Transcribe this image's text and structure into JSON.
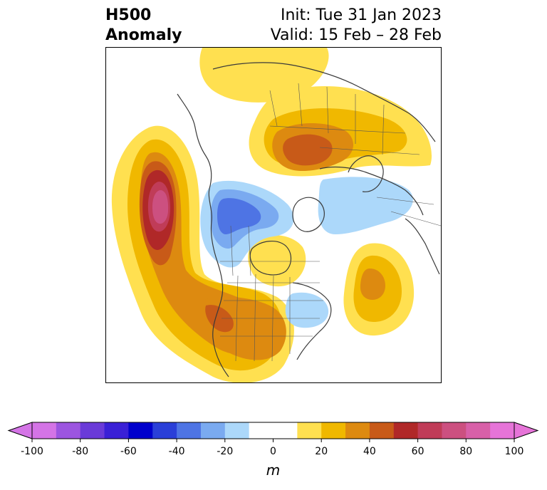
{
  "title": {
    "line1": "H500",
    "line2": "Anomaly",
    "init": "Init: Tue 31 Jan 2023",
    "valid": "Valid: 15 Feb – 28 Feb"
  },
  "colorbar": {
    "unit": "m",
    "ticks": [
      "-100",
      "-80",
      "-60",
      "-40",
      "-20",
      "0",
      "20",
      "40",
      "60",
      "80",
      "100"
    ],
    "levels": [
      -100,
      -90,
      -80,
      -70,
      -60,
      -50,
      -40,
      -30,
      -20,
      -10,
      10,
      20,
      30,
      40,
      50,
      60,
      70,
      80,
      90,
      100
    ],
    "colors": [
      "#d474e6",
      "#9c55e0",
      "#6a3ad8",
      "#3a20d6",
      "#0000cc",
      "#2a3fd8",
      "#4e74e4",
      "#7aaaf0",
      "#acd8fa",
      "#ffffff",
      "#ffe050",
      "#f0b800",
      "#dd8a10",
      "#c85a18",
      "#b02828",
      "#c03c58",
      "#cc5080",
      "#d860a8",
      "#e674d8"
    ],
    "extend_low": "#d474e6",
    "extend_high": "#e674d8"
  },
  "map": {
    "projection": "north-polar-stereographic",
    "field": "500 hPa geopotential height anomaly"
  }
}
